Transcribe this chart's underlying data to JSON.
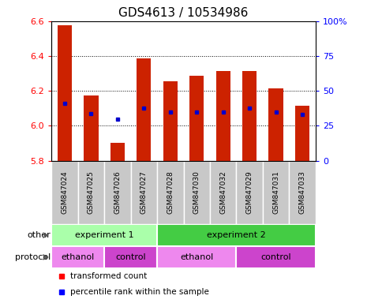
{
  "title": "GDS4613 / 10534986",
  "samples": [
    "GSM847024",
    "GSM847025",
    "GSM847026",
    "GSM847027",
    "GSM847028",
    "GSM847030",
    "GSM847032",
    "GSM847029",
    "GSM847031",
    "GSM847033"
  ],
  "bar_tops": [
    6.575,
    6.175,
    5.9,
    6.385,
    6.255,
    6.285,
    6.315,
    6.315,
    6.215,
    6.115
  ],
  "bar_base": 5.8,
  "dot_values": [
    6.13,
    6.07,
    6.04,
    6.1,
    6.08,
    6.08,
    6.08,
    6.1,
    6.08,
    6.065
  ],
  "ylim": [
    5.8,
    6.6
  ],
  "y2lim": [
    0,
    100
  ],
  "yticks": [
    5.8,
    6.0,
    6.2,
    6.4,
    6.6
  ],
  "y2ticks": [
    0,
    25,
    50,
    75,
    100
  ],
  "y2ticklabels": [
    "0",
    "25",
    "50",
    "75",
    "100%"
  ],
  "bar_color": "#cc2200",
  "dot_color": "#0000cc",
  "label_bg_color": "#c8c8c8",
  "other_row": [
    {
      "label": "experiment 1",
      "start": 0,
      "end": 4,
      "color": "#aaffaa"
    },
    {
      "label": "experiment 2",
      "start": 4,
      "end": 10,
      "color": "#44cc44"
    }
  ],
  "protocol_row": [
    {
      "label": "ethanol",
      "start": 0,
      "end": 2,
      "color": "#ee88ee"
    },
    {
      "label": "control",
      "start": 2,
      "end": 4,
      "color": "#cc44cc"
    },
    {
      "label": "ethanol",
      "start": 4,
      "end": 7,
      "color": "#ee88ee"
    },
    {
      "label": "control",
      "start": 7,
      "end": 10,
      "color": "#cc44cc"
    }
  ]
}
